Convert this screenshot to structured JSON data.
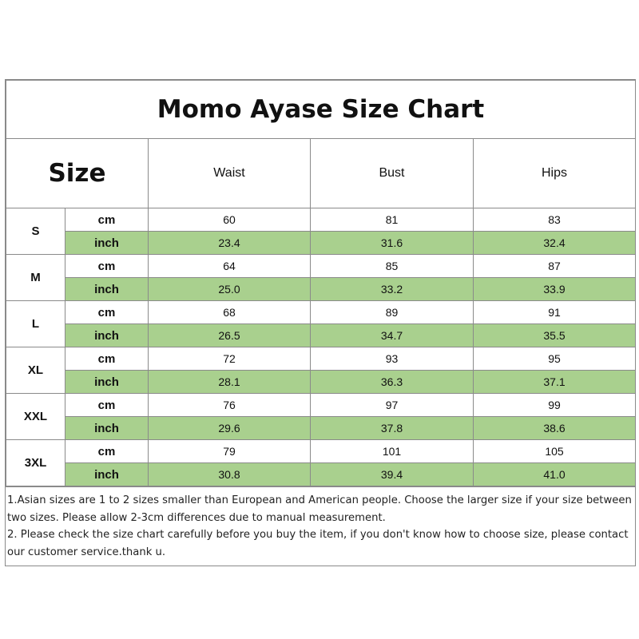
{
  "title": "Momo Ayase Size Chart",
  "header": {
    "size_label": "Size",
    "columns": [
      "Waist",
      "Bust",
      "Hips"
    ]
  },
  "rows": [
    {
      "size": "S",
      "cm_label": "cm",
      "inch_label": "inch",
      "cm": [
        "60",
        "81",
        "83"
      ],
      "inch": [
        "23.4",
        "31.6",
        "32.4"
      ]
    },
    {
      "size": "M",
      "cm_label": "cm",
      "inch_label": "inch",
      "cm": [
        "64",
        "85",
        "87"
      ],
      "inch": [
        "25.0",
        "33.2",
        "33.9"
      ]
    },
    {
      "size": "L",
      "cm_label": "cm",
      "inch_label": "inch",
      "cm": [
        "68",
        "89",
        "91"
      ],
      "inch": [
        "26.5",
        "34.7",
        "35.5"
      ]
    },
    {
      "size": "XL",
      "cm_label": "cm",
      "inch_label": "inch",
      "cm": [
        "72",
        "93",
        "95"
      ],
      "inch": [
        "28.1",
        "36.3",
        "37.1"
      ]
    },
    {
      "size": "XXL",
      "cm_label": "cm",
      "inch_label": "inch",
      "cm": [
        "76",
        "97",
        "99"
      ],
      "inch": [
        "29.6",
        "37.8",
        "38.6"
      ]
    },
    {
      "size": "3XL",
      "cm_label": "cm",
      "inch_label": "inch",
      "cm": [
        "79",
        "101",
        "105"
      ],
      "inch": [
        "30.8",
        "39.4",
        "41.0"
      ]
    }
  ],
  "notes": [
    "1.Asian sizes are 1 to 2 sizes smaller than European and American people. Choose the larger size if your size between two sizes. Please allow 2-3cm differences due to manual measurement.",
    "2. Please check the size chart carefully before you buy the item, if you don't know how to choose size, please contact our customer  service.thank u."
  ],
  "colors": {
    "inch_row_fill": "#a9d08e",
    "border": "#8a8a8a"
  }
}
